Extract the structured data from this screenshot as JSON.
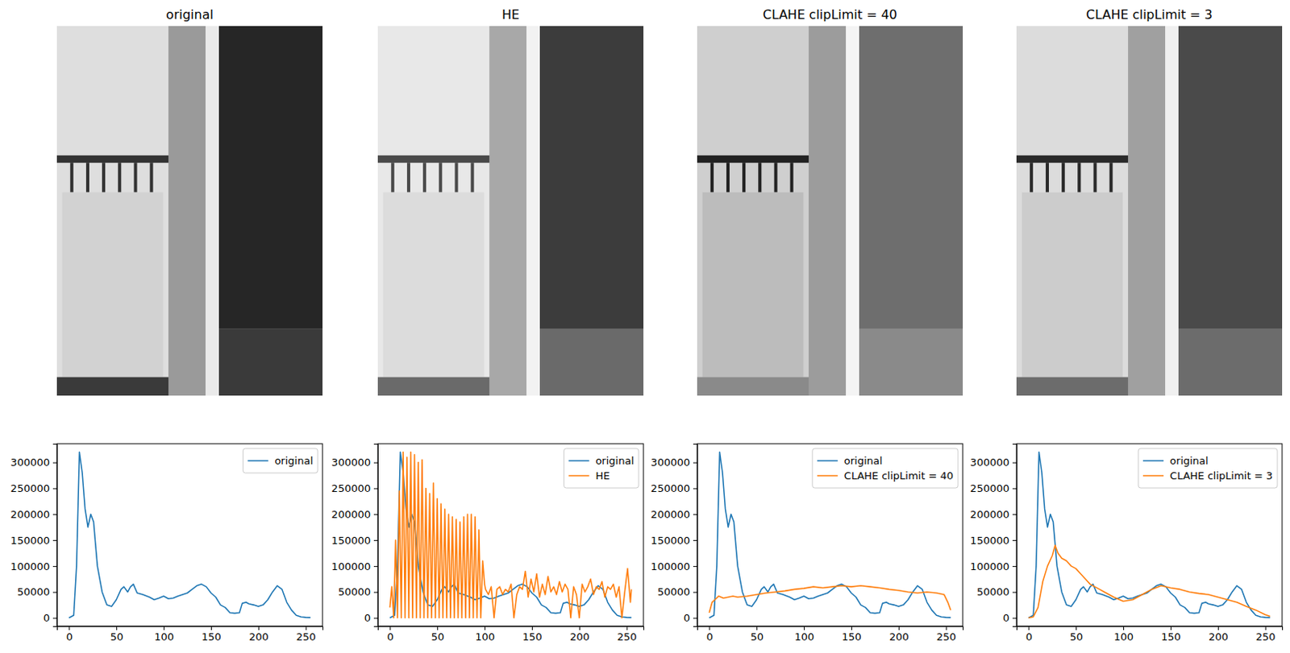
{
  "images": [
    {
      "title": "original"
    },
    {
      "title": "HE"
    },
    {
      "title": "CLAHE clipLimit = 40"
    },
    {
      "title": "CLAHE clipLimit = 3"
    }
  ],
  "chart_data": [
    {
      "type": "line",
      "xlim": [
        -12.75,
        267.75
      ],
      "ylim": [
        -16000,
        336000
      ],
      "xticks": [
        0,
        50,
        100,
        150,
        200,
        250
      ],
      "yticks": [
        0,
        50000,
        100000,
        150000,
        200000,
        250000,
        300000
      ],
      "legend": "upper right",
      "series": [
        {
          "name": "original",
          "color": "#1f77b4",
          "x": [
            0,
            5,
            8,
            11,
            14,
            17,
            20,
            23,
            26,
            30,
            35,
            40,
            45,
            50,
            55,
            58,
            62,
            65,
            68,
            72,
            78,
            85,
            90,
            95,
            100,
            105,
            110,
            115,
            120,
            125,
            130,
            135,
            140,
            145,
            150,
            155,
            160,
            165,
            170,
            175,
            180,
            183,
            187,
            190,
            195,
            200,
            205,
            210,
            215,
            220,
            225,
            230,
            235,
            240,
            245,
            250,
            255
          ],
          "values": [
            0,
            5000,
            100000,
            320000,
            280000,
            210000,
            175000,
            200000,
            185000,
            100000,
            50000,
            25000,
            22000,
            35000,
            55000,
            60000,
            50000,
            60000,
            65000,
            48000,
            45000,
            40000,
            35000,
            38000,
            42000,
            37000,
            38000,
            42000,
            45000,
            48000,
            55000,
            62000,
            65000,
            60000,
            48000,
            40000,
            25000,
            20000,
            10000,
            9000,
            10000,
            28000,
            30000,
            27000,
            25000,
            22000,
            25000,
            35000,
            50000,
            62000,
            55000,
            30000,
            15000,
            5000,
            2000,
            1000,
            500
          ]
        }
      ]
    },
    {
      "type": "line",
      "xlim": [
        -12.75,
        267.75
      ],
      "ylim": [
        -16000,
        336000
      ],
      "xticks": [
        0,
        50,
        100,
        150,
        200,
        250
      ],
      "yticks": [
        0,
        50000,
        100000,
        150000,
        200000,
        250000,
        300000
      ],
      "legend": "upper right",
      "series": [
        {
          "name": "original",
          "color": "#1f77b4",
          "x": [
            0,
            5,
            8,
            11,
            14,
            17,
            20,
            23,
            26,
            30,
            35,
            40,
            45,
            50,
            55,
            58,
            62,
            65,
            68,
            72,
            78,
            85,
            90,
            95,
            100,
            105,
            110,
            115,
            120,
            125,
            130,
            135,
            140,
            145,
            150,
            155,
            160,
            165,
            170,
            175,
            180,
            183,
            187,
            190,
            195,
            200,
            205,
            210,
            215,
            220,
            225,
            230,
            235,
            240,
            245,
            250,
            255
          ],
          "values": [
            0,
            5000,
            100000,
            320000,
            280000,
            210000,
            175000,
            200000,
            185000,
            100000,
            50000,
            25000,
            22000,
            35000,
            55000,
            60000,
            50000,
            60000,
            65000,
            48000,
            45000,
            40000,
            35000,
            38000,
            42000,
            37000,
            38000,
            42000,
            45000,
            48000,
            55000,
            62000,
            65000,
            60000,
            48000,
            40000,
            25000,
            20000,
            10000,
            9000,
            10000,
            28000,
            30000,
            27000,
            25000,
            22000,
            25000,
            35000,
            50000,
            62000,
            55000,
            30000,
            15000,
            5000,
            2000,
            1000,
            500
          ]
        },
        {
          "name": "HE",
          "color": "#ff7f0e",
          "x": [
            0,
            2,
            4,
            6,
            8,
            10,
            12,
            14,
            16,
            18,
            20,
            22,
            24,
            26,
            28,
            30,
            32,
            34,
            36,
            38,
            40,
            42,
            44,
            46,
            48,
            50,
            52,
            54,
            56,
            58,
            60,
            62,
            64,
            66,
            68,
            70,
            72,
            74,
            76,
            78,
            80,
            82,
            84,
            86,
            88,
            90,
            92,
            94,
            96,
            98,
            100,
            101,
            104,
            107,
            110,
            113,
            116,
            119,
            122,
            125,
            128,
            131,
            134,
            137,
            140,
            143,
            146,
            149,
            152,
            155,
            158,
            161,
            164,
            167,
            170,
            173,
            176,
            179,
            182,
            185,
            188,
            191,
            194,
            197,
            200,
            203,
            206,
            209,
            212,
            215,
            218,
            221,
            224,
            227,
            230,
            233,
            236,
            239,
            242,
            245,
            248,
            251,
            254,
            255
          ],
          "values": [
            20000,
            60000,
            0,
            150000,
            0,
            245000,
            0,
            320000,
            0,
            310000,
            0,
            320000,
            0,
            315000,
            0,
            300000,
            0,
            305000,
            0,
            250000,
            0,
            240000,
            0,
            260000,
            0,
            230000,
            0,
            220000,
            0,
            210000,
            0,
            200000,
            0,
            195000,
            0,
            190000,
            0,
            185000,
            0,
            195000,
            0,
            200000,
            0,
            200000,
            0,
            195000,
            0,
            170000,
            0,
            110000,
            65000,
            55000,
            45000,
            60000,
            0,
            55000,
            60000,
            45000,
            55000,
            50000,
            65000,
            0,
            45000,
            60000,
            55000,
            90000,
            40000,
            75000,
            50000,
            85000,
            40000,
            65000,
            45000,
            80000,
            50000,
            60000,
            45000,
            70000,
            50000,
            65000,
            55000,
            0,
            60000,
            45000,
            0,
            65000,
            50000,
            60000,
            75000,
            45000,
            60000,
            55000,
            70000,
            40000,
            60000,
            55000,
            65000,
            40000,
            60000,
            0,
            50000,
            95000,
            30000,
            55000
          ]
        }
      ]
    },
    {
      "type": "line",
      "xlim": [
        -12.75,
        267.75
      ],
      "ylim": [
        -16000,
        336000
      ],
      "xticks": [
        0,
        50,
        100,
        150,
        200,
        250
      ],
      "yticks": [
        0,
        50000,
        100000,
        150000,
        200000,
        250000,
        300000
      ],
      "legend": "upper right",
      "series": [
        {
          "name": "original",
          "color": "#1f77b4",
          "x": [
            0,
            5,
            8,
            11,
            14,
            17,
            20,
            23,
            26,
            30,
            35,
            40,
            45,
            50,
            55,
            58,
            62,
            65,
            68,
            72,
            78,
            85,
            90,
            95,
            100,
            105,
            110,
            115,
            120,
            125,
            130,
            135,
            140,
            145,
            150,
            155,
            160,
            165,
            170,
            175,
            180,
            183,
            187,
            190,
            195,
            200,
            205,
            210,
            215,
            220,
            225,
            230,
            235,
            240,
            245,
            250,
            255
          ],
          "values": [
            0,
            5000,
            100000,
            320000,
            280000,
            210000,
            175000,
            200000,
            185000,
            100000,
            50000,
            25000,
            22000,
            35000,
            55000,
            60000,
            50000,
            60000,
            65000,
            48000,
            45000,
            40000,
            35000,
            38000,
            42000,
            37000,
            38000,
            42000,
            45000,
            48000,
            55000,
            62000,
            65000,
            60000,
            48000,
            40000,
            25000,
            20000,
            10000,
            9000,
            10000,
            28000,
            30000,
            27000,
            25000,
            22000,
            25000,
            35000,
            50000,
            62000,
            55000,
            30000,
            15000,
            5000,
            2000,
            1000,
            500
          ]
        },
        {
          "name": "CLAHE clipLimit = 40",
          "color": "#ff7f0e",
          "x": [
            0,
            3,
            6,
            10,
            15,
            20,
            25,
            30,
            40,
            50,
            60,
            70,
            80,
            90,
            100,
            110,
            120,
            130,
            140,
            150,
            160,
            170,
            180,
            190,
            200,
            210,
            220,
            230,
            240,
            248,
            252,
            255
          ],
          "values": [
            10000,
            30000,
            35000,
            42000,
            38000,
            40000,
            42000,
            40000,
            42000,
            45000,
            48000,
            50000,
            52000,
            55000,
            57000,
            60000,
            58000,
            60000,
            62000,
            60000,
            62000,
            60000,
            58000,
            55000,
            53000,
            50000,
            48000,
            50000,
            48000,
            45000,
            30000,
            15000
          ]
        }
      ]
    },
    {
      "type": "line",
      "xlim": [
        -12.75,
        267.75
      ],
      "ylim": [
        -16000,
        336000
      ],
      "xticks": [
        0,
        50,
        100,
        150,
        200,
        250
      ],
      "yticks": [
        0,
        50000,
        100000,
        150000,
        200000,
        250000,
        300000
      ],
      "legend": "upper right",
      "series": [
        {
          "name": "original",
          "color": "#1f77b4",
          "x": [
            0,
            5,
            8,
            11,
            14,
            17,
            20,
            23,
            26,
            30,
            35,
            40,
            45,
            50,
            55,
            58,
            62,
            65,
            68,
            72,
            78,
            85,
            90,
            95,
            100,
            105,
            110,
            115,
            120,
            125,
            130,
            135,
            140,
            145,
            150,
            155,
            160,
            165,
            170,
            175,
            180,
            183,
            187,
            190,
            195,
            200,
            205,
            210,
            215,
            220,
            225,
            230,
            235,
            240,
            245,
            250,
            255
          ],
          "values": [
            0,
            5000,
            100000,
            320000,
            280000,
            210000,
            175000,
            200000,
            185000,
            100000,
            50000,
            25000,
            22000,
            35000,
            55000,
            60000,
            50000,
            60000,
            65000,
            48000,
            45000,
            40000,
            35000,
            38000,
            42000,
            37000,
            38000,
            42000,
            45000,
            48000,
            55000,
            62000,
            65000,
            60000,
            48000,
            40000,
            25000,
            20000,
            10000,
            9000,
            10000,
            28000,
            30000,
            27000,
            25000,
            22000,
            25000,
            35000,
            50000,
            62000,
            55000,
            30000,
            15000,
            5000,
            2000,
            1000,
            500
          ]
        },
        {
          "name": "CLAHE clipLimit = 3",
          "color": "#ff7f0e",
          "x": [
            0,
            5,
            10,
            15,
            20,
            25,
            28,
            31,
            35,
            40,
            45,
            50,
            55,
            60,
            65,
            70,
            75,
            80,
            90,
            100,
            110,
            120,
            130,
            140,
            150,
            160,
            170,
            180,
            190,
            200,
            210,
            220,
            230,
            240,
            250,
            255
          ],
          "values": [
            0,
            2000,
            20000,
            70000,
            100000,
            120000,
            140000,
            125000,
            115000,
            110000,
            100000,
            95000,
            85000,
            75000,
            65000,
            60000,
            55000,
            50000,
            40000,
            32000,
            35000,
            45000,
            55000,
            62000,
            58000,
            55000,
            50000,
            47000,
            45000,
            40000,
            35000,
            30000,
            22000,
            15000,
            6000,
            3000
          ]
        }
      ]
    }
  ]
}
